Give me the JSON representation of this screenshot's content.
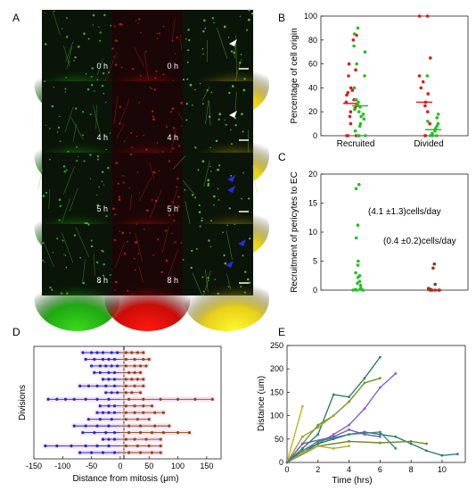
{
  "panel_labels": [
    "A",
    "B",
    "C",
    "D",
    "E"
  ],
  "panel_a": {
    "timepoints": [
      "0 h",
      "4 h",
      "5 h",
      "8 h"
    ],
    "arrow_colors": [
      "#ffffff",
      "#ffffff",
      "#2030d8",
      "#2030d8"
    ],
    "channel_colors": {
      "green": "#29c21a",
      "red": "#e01212",
      "merge": "#f5f21a"
    }
  },
  "chart_data": [
    {
      "panel": "B",
      "type": "scatter",
      "ylabel": "Percentage of cell origin",
      "categories": [
        "Recruited",
        "Divided"
      ],
      "ylim": [
        0,
        100
      ],
      "yticks": [
        0,
        20,
        40,
        60,
        80,
        100
      ],
      "series": [
        {
          "color": "#e01b1b",
          "category": "Recruited",
          "values": [
            0,
            0,
            0,
            10,
            16,
            20,
            23,
            25,
            28,
            30,
            34,
            36,
            38,
            40,
            50,
            55,
            60,
            80,
            84
          ],
          "median": 27
        },
        {
          "color": "#22c022",
          "category": "Recruited",
          "values": [
            0,
            0,
            0,
            4,
            8,
            10,
            14,
            16,
            18,
            20,
            22,
            24,
            25,
            28,
            30,
            40,
            50,
            60,
            70,
            75,
            85,
            90
          ],
          "median": 25
        },
        {
          "color": "#e01b1b",
          "category": "Divided",
          "values": [
            0,
            0,
            10,
            20,
            25,
            28,
            35,
            40,
            45,
            50,
            65,
            100,
            100
          ],
          "median": 28
        },
        {
          "color": "#22c022",
          "category": "Divided",
          "values": [
            0,
            0,
            0,
            2,
            4,
            6,
            8,
            10,
            12,
            15,
            18,
            50
          ],
          "median": 5
        }
      ]
    },
    {
      "panel": "C",
      "type": "scatter",
      "ylabel": "Recruitment of pericytes to EC",
      "ylim": [
        0,
        20
      ],
      "yticks": [
        0,
        5,
        10,
        15,
        20
      ],
      "annotations": [
        "(4.1 ±1.3)cells/day",
        "(0.4 ±0.2)cells/day"
      ],
      "series": [
        {
          "color": "#22c022",
          "values": [
            18.2,
            17.5,
            11.2,
            9.0,
            5.0,
            4.3,
            3.0,
            2.5,
            2.2,
            1.5,
            1.2,
            0.8,
            0.3,
            0.2,
            0.1,
            0,
            0,
            0
          ]
        },
        {
          "color": "#8b3a10",
          "values": [
            4.5,
            3.8,
            1.0,
            0.3,
            0.1,
            0,
            0,
            0,
            0,
            0
          ]
        }
      ]
    },
    {
      "panel": "D",
      "type": "line",
      "xlabel": "Distance from mitosis (μm)",
      "ylabel": "Divisions",
      "xlim": [
        -150,
        175
      ],
      "xticks": [
        -150,
        -100,
        -50,
        0,
        50,
        100,
        150
      ],
      "series_colors": [
        "#1a2dbf",
        "#8a4a10"
      ],
      "divisions": [
        {
          "left": [
            -65,
            -50,
            -40,
            -30,
            -15,
            -5
          ],
          "right": [
            10,
            20,
            30,
            40
          ]
        },
        {
          "left": [
            -60,
            -45,
            -30,
            -20,
            -10
          ],
          "right": [
            10,
            25,
            40,
            50
          ]
        },
        {
          "left": [
            -50,
            -35,
            -25,
            -15,
            -5
          ],
          "right": [
            10,
            25,
            35,
            45
          ]
        },
        {
          "left": [
            -45,
            -35,
            -20,
            -10
          ],
          "right": [
            15,
            25,
            35
          ]
        },
        {
          "left": [
            -30,
            -20,
            -10
          ],
          "right": [
            10,
            20,
            30,
            40
          ]
        },
        {
          "left": [
            -70,
            -55,
            -40,
            -25,
            -10
          ],
          "right": [
            10,
            25,
            40
          ]
        },
        {
          "left": [
            -25,
            -15,
            -5
          ],
          "right": [
            10,
            20,
            35
          ]
        },
        {
          "left": [
            -125,
            -110,
            -95,
            -80,
            -60,
            -40,
            -20
          ],
          "right": [
            15,
            40,
            70,
            100,
            130,
            160
          ]
        },
        {
          "left": [
            -35,
            -20,
            -10
          ],
          "right": [
            10,
            25,
            40,
            55
          ]
        },
        {
          "left": [
            -40,
            -30,
            -20,
            -10
          ],
          "right": [
            10,
            25,
            40,
            60,
            75
          ]
        },
        {
          "left": [
            -55,
            -35,
            -15
          ],
          "right": [
            10,
            30,
            50
          ]
        },
        {
          "left": [
            -80,
            -60,
            -40,
            -20
          ],
          "right": [
            15,
            35,
            60,
            85
          ]
        },
        {
          "left": [
            -65,
            -45,
            -25,
            -10
          ],
          "right": [
            15,
            35,
            55,
            75,
            100,
            120
          ]
        },
        {
          "left": [
            -30,
            -20,
            -10
          ],
          "right": [
            10,
            25,
            45,
            70
          ]
        },
        {
          "left": [
            -130,
            -110,
            -85,
            -60,
            -40,
            -20
          ],
          "right": [
            10,
            30,
            50,
            70
          ]
        },
        {
          "left": [
            -70,
            -50,
            -30,
            -10
          ],
          "right": [
            15,
            35,
            55,
            70
          ]
        }
      ]
    },
    {
      "panel": "E",
      "type": "line",
      "xlabel": "Time (hrs)",
      "ylabel": "Distance (um)",
      "xlim": [
        0,
        11.5
      ],
      "ylim": [
        0,
        250
      ],
      "xticks": [
        0,
        2,
        4,
        6,
        8,
        10
      ],
      "yticks": [
        0,
        50,
        100,
        150,
        200,
        250
      ],
      "series": [
        {
          "color": "#2e7d6e",
          "x": [
            0,
            1,
            2,
            3,
            4,
            5,
            6
          ],
          "y": [
            0,
            30,
            60,
            145,
            140,
            180,
            225
          ]
        },
        {
          "color": "#6a9a2a",
          "x": [
            0,
            1,
            2,
            3,
            4,
            5,
            6
          ],
          "y": [
            0,
            40,
            80,
            100,
            130,
            170,
            180
          ]
        },
        {
          "color": "#8a5ec8",
          "x": [
            0,
            1,
            2,
            3,
            4,
            5,
            6,
            7
          ],
          "y": [
            0,
            25,
            40,
            60,
            80,
            115,
            160,
            190
          ]
        },
        {
          "color": "#c2b21e",
          "x": [
            0,
            1
          ],
          "y": [
            0,
            120
          ]
        },
        {
          "color": "#9aa630",
          "x": [
            0,
            1,
            2,
            3
          ],
          "y": [
            0,
            55,
            75,
            100
          ]
        },
        {
          "color": "#2e7d6e",
          "x": [
            0,
            2,
            3,
            4,
            5,
            6,
            7,
            8,
            9,
            10,
            11
          ],
          "y": [
            0,
            40,
            50,
            60,
            65,
            60,
            55,
            40,
            25,
            15,
            18
          ]
        },
        {
          "color": "#6a8a2a",
          "x": [
            0,
            2,
            4,
            6,
            8,
            9
          ],
          "y": [
            0,
            35,
            45,
            42,
            45,
            40
          ]
        },
        {
          "color": "#7a5ab8",
          "x": [
            0,
            1,
            3,
            4,
            5,
            6
          ],
          "y": [
            0,
            40,
            55,
            70,
            60,
            55
          ]
        },
        {
          "color": "#b8aa2a",
          "x": [
            0,
            1,
            2,
            3,
            4
          ],
          "y": [
            0,
            20,
            35,
            30,
            35
          ]
        },
        {
          "color": "#3a8a7a",
          "x": [
            0,
            1,
            2,
            4,
            6,
            7
          ],
          "y": [
            0,
            25,
            45,
            60,
            65,
            30
          ]
        }
      ]
    }
  ]
}
